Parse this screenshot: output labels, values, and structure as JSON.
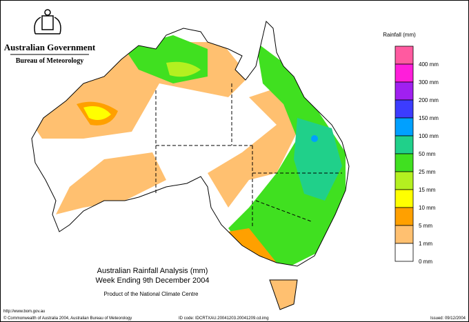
{
  "header": {
    "government": "Australian Government",
    "bureau": "Bureau of Meteorology"
  },
  "legend": {
    "title": "Rainfall (mm)",
    "items": [
      {
        "color": "#ff5aa0",
        "label": "400 mm"
      },
      {
        "color": "#ff1eda",
        "label": "300 mm"
      },
      {
        "color": "#a020f0",
        "label": "200 mm"
      },
      {
        "color": "#3c3cff",
        "label": "150 mm"
      },
      {
        "color": "#00a0ff",
        "label": "100 mm"
      },
      {
        "color": "#20d08a",
        "label": "50 mm"
      },
      {
        "color": "#40e020",
        "label": "25 mm"
      },
      {
        "color": "#b4f020",
        "label": "15 mm"
      },
      {
        "color": "#ffff00",
        "label": "10 mm"
      },
      {
        "color": "#ffa000",
        "label": "5 mm"
      },
      {
        "color": "#ffc070",
        "label": "1 mm"
      },
      {
        "color": "#ffffff",
        "label": "0 mm"
      }
    ]
  },
  "caption": {
    "title": "Australian Rainfall Analysis (mm)",
    "period": "Week Ending 9th December 2004",
    "product": "Product of the National Climate Centre"
  },
  "footer": {
    "url": "http://www.bom.gov.au",
    "copyright": "© Commonwealth of Australia 2004, Australian Bureau of Meteorology",
    "id_code": "ID code: IDCRTXAU.20041203.20041209.cd.img",
    "issued": "Issued: 09/12/2004"
  }
}
